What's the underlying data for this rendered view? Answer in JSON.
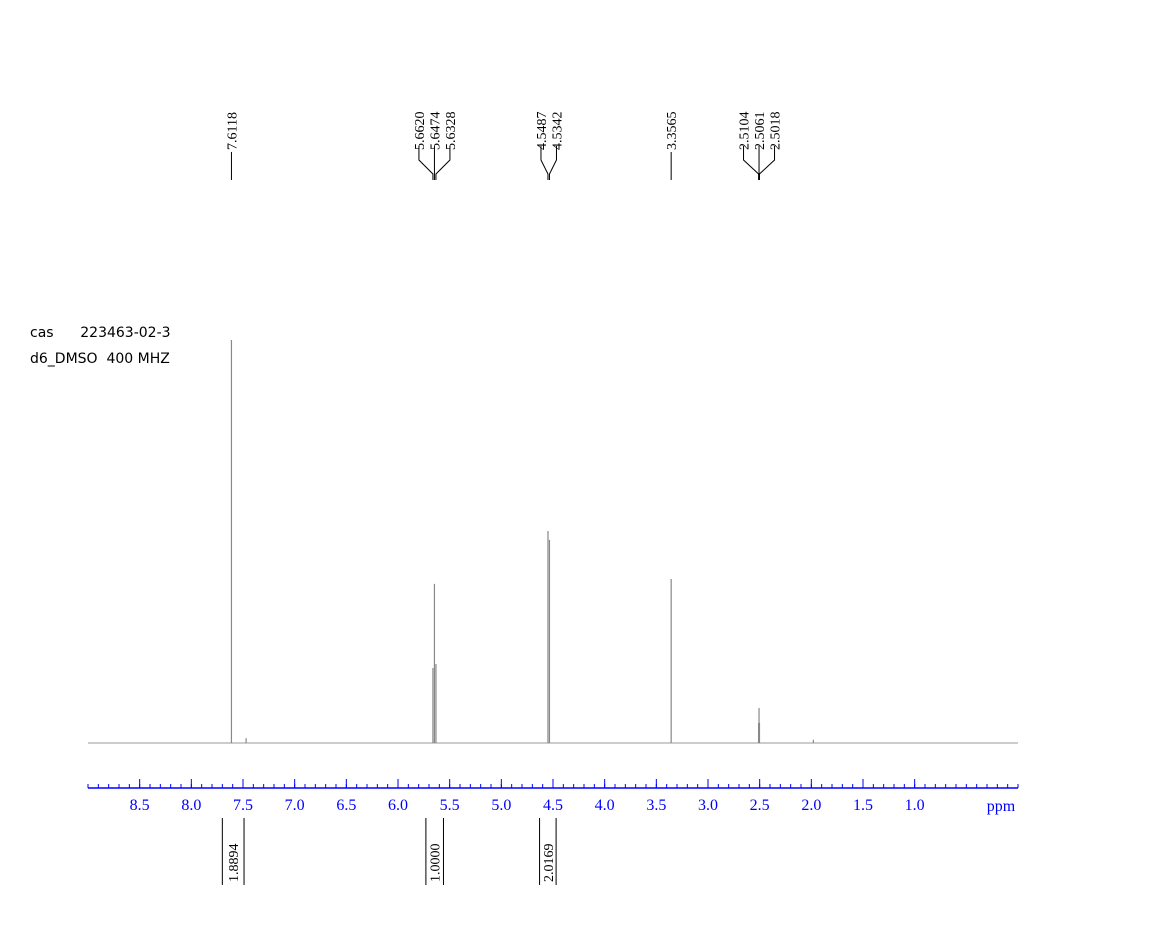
{
  "chart_data": {
    "type": "nmr",
    "annotations": [
      "cas      223463-02-3",
      "d6_DMSO  400 MHZ"
    ],
    "xlabel": "ppm",
    "xlim": [
      9.0,
      0.0
    ],
    "ylim": [
      0,
      100
    ],
    "xticks": [
      8.5,
      {
        "value": 8,
        "label": "8.0"
      },
      7.5,
      {
        "value": 7,
        "label": "7.0"
      },
      6.5,
      {
        "value": 6,
        "label": "6.0"
      },
      5.5,
      {
        "value": 5,
        "label": "5.0"
      },
      4.5,
      {
        "value": 4,
        "label": "4.0"
      },
      3.5,
      {
        "value": 3,
        "label": "3.0"
      },
      2.5,
      {
        "value": 2,
        "label": "2.0"
      },
      1.5,
      {
        "value": 1,
        "label": "1.0"
      }
    ],
    "minor_tick_interval": 0.1,
    "axis_color": "#0000ff",
    "series": [
      {
        "name": "spectrum",
        "color": "#888888",
        "x": [
          7.6118,
          7.47,
          5.662,
          5.6474,
          5.6328,
          4.5487,
          4.5342,
          3.3565,
          2.5104,
          2.5061,
          2.5018,
          1.98
        ],
        "values": [
          100,
          1.2,
          18.6,
          39.5,
          19.6,
          52.6,
          50.4,
          40.7,
          5,
          8.7,
          5,
          0.8
        ]
      }
    ],
    "peak_picks": [
      7.6118,
      {
        "value": 5.662,
        "label": "5.6620"
      },
      5.6474,
      5.6328,
      4.5487,
      4.5342,
      3.3565,
      2.5104,
      2.5061,
      2.5018
    ],
    "integrals": [
      {
        "from": 7.7,
        "to": 7.49,
        "value": 1.8894
      },
      {
        "from": 5.73,
        "to": 5.56,
        "value": {
          "value": 1,
          "label": "1.0000"
        }
      },
      {
        "from": 4.63,
        "to": 4.47,
        "value": 2.0169
      }
    ]
  }
}
